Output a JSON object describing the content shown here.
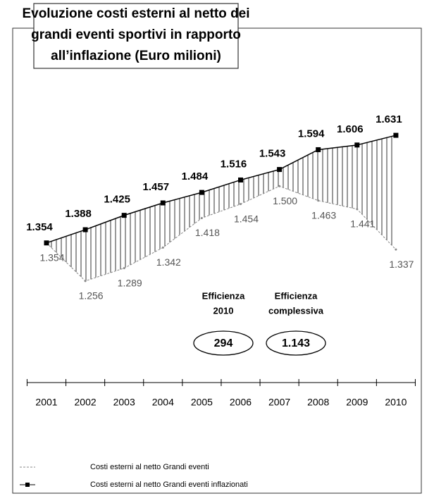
{
  "chart_data": {
    "type": "line",
    "title": [
      "Evoluzione costi esterni al netto dei",
      "grandi eventi sportivi in rapporto",
      "all’inflazione (Euro milioni)"
    ],
    "categories": [
      "2001",
      "2002",
      "2003",
      "2004",
      "2005",
      "2006",
      "2007",
      "2008",
      "2009",
      "2010"
    ],
    "series": [
      {
        "name": "Costi esterni al netto Grandi eventi",
        "color": "#888888",
        "values": [
          1354,
          1256,
          1289,
          1342,
          1418,
          1454,
          1500,
          1463,
          1441,
          1337
        ],
        "value_labels": [
          "1.354",
          "1.256",
          "1.289",
          "1.342",
          "1.418",
          "1.454",
          "1.500",
          "1.463",
          "1.441",
          "1.337"
        ]
      },
      {
        "name": "Costi esterni al netto Grandi eventi inflazionati",
        "color": "#000000",
        "values": [
          1354,
          1388,
          1425,
          1457,
          1484,
          1516,
          1543,
          1594,
          1606,
          1631
        ],
        "value_labels": [
          "1.354",
          "1.388",
          "1.425",
          "1.457",
          "1.484",
          "1.516",
          "1.543",
          "1.594",
          "1.606",
          "1.631"
        ]
      }
    ],
    "ylim": [
      1000,
      1700
    ],
    "annotations": [
      {
        "label": [
          "Efficienza",
          "2010"
        ],
        "value": "294"
      },
      {
        "label": [
          "Efficienza",
          "complessiva"
        ],
        "value": "1.143"
      }
    ]
  }
}
